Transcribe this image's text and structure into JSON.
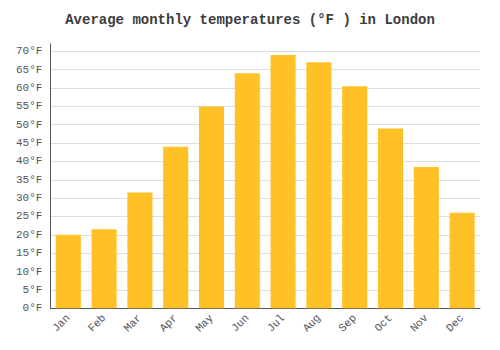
{
  "chart_data": {
    "type": "bar",
    "title": "Average monthly temperatures (°F ) in London",
    "categories": [
      "Jan",
      "Feb",
      "Mar",
      "Apr",
      "May",
      "Jun",
      "Jul",
      "Aug",
      "Sep",
      "Oct",
      "Nov",
      "Dec"
    ],
    "values": [
      20,
      21.5,
      31.5,
      44,
      55,
      64,
      69,
      67,
      60.5,
      49,
      38.5,
      26
    ],
    "color": "#FFC125",
    "ylim": [
      0,
      72
    ],
    "yticks": [
      {
        "value": 0,
        "label": "0°F"
      },
      {
        "value": 5,
        "label": "5°F"
      },
      {
        "value": 10,
        "label": "10°F"
      },
      {
        "value": 15,
        "label": "15°F"
      },
      {
        "value": 20,
        "label": "20°F"
      },
      {
        "value": 25,
        "label": "25°F"
      },
      {
        "value": 30,
        "label": "30°F"
      },
      {
        "value": 35,
        "label": "35°F"
      },
      {
        "value": 40,
        "label": "40°F"
      },
      {
        "value": 45,
        "label": "45°F"
      },
      {
        "value": 50,
        "label": "50°F"
      },
      {
        "value": 55,
        "label": "55°F"
      },
      {
        "value": 60,
        "label": "60°F"
      },
      {
        "value": 65,
        "label": "65°F"
      },
      {
        "value": 70,
        "label": "70°F"
      }
    ],
    "grid": true
  }
}
